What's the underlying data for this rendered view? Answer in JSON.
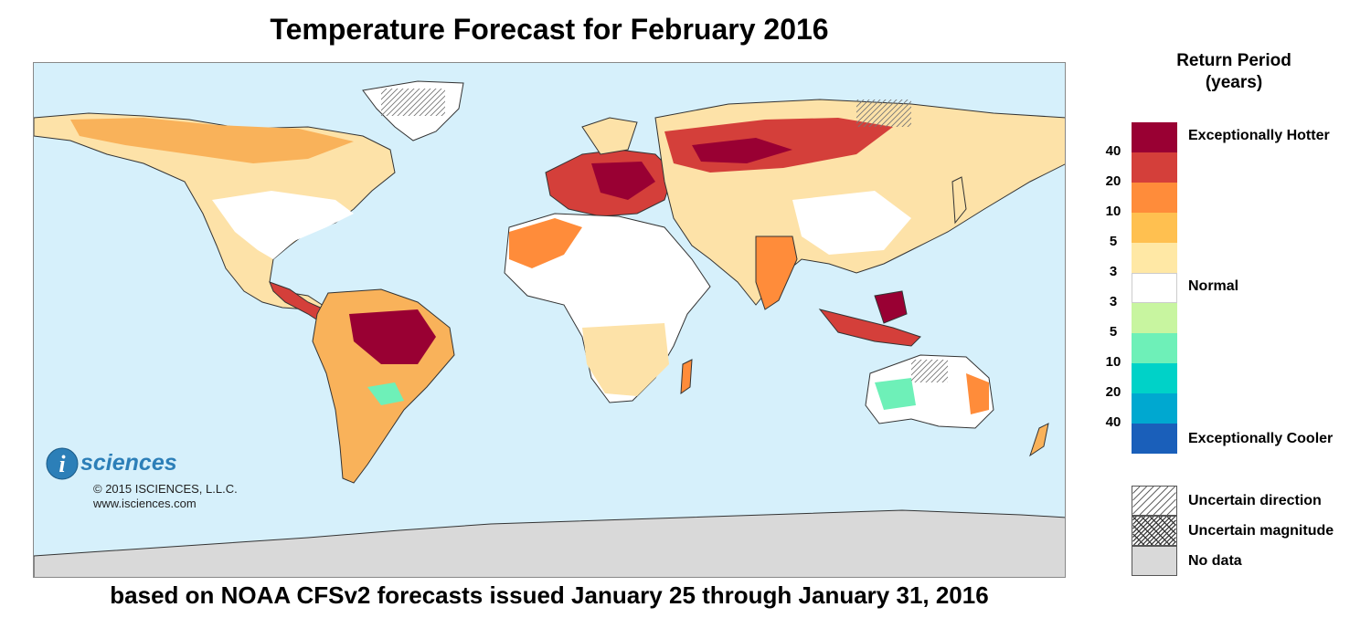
{
  "title": "Temperature Forecast for February 2016",
  "subtitle": "based on NOAA CFSv2 forecasts issued January 25 through January 31, 2016",
  "logo": {
    "letter": "i",
    "word": "sciences",
    "copyright": "© 2015 ISCIENCES, L.L.C.",
    "url": "www.isciences.com"
  },
  "legend": {
    "title_line1": "Return Period",
    "title_line2": "(years)",
    "colors": [
      "#990033",
      "#d43f3a",
      "#ff8c3a",
      "#ffc050",
      "#ffe8a5",
      "#ffffff",
      "#c8f5a0",
      "#6ef0b8",
      "#00d2c8",
      "#00a8d0",
      "#1a5fba"
    ],
    "ticks": [
      "40",
      "20",
      "10",
      "5",
      "3",
      "3",
      "5",
      "10",
      "20",
      "40"
    ],
    "hotter_label": "Exceptionally Hotter",
    "normal_label": "Normal",
    "cooler_label": "Exceptionally Cooler",
    "symbols": {
      "uncertain_direction": "Uncertain direction",
      "uncertain_magnitude": "Uncertain magnitude",
      "no_data": "No data"
    }
  },
  "map_colors": {
    "ocean": "#d6f0fb",
    "land_normal": "#ffffff",
    "no_data": "#d9d9d9"
  }
}
